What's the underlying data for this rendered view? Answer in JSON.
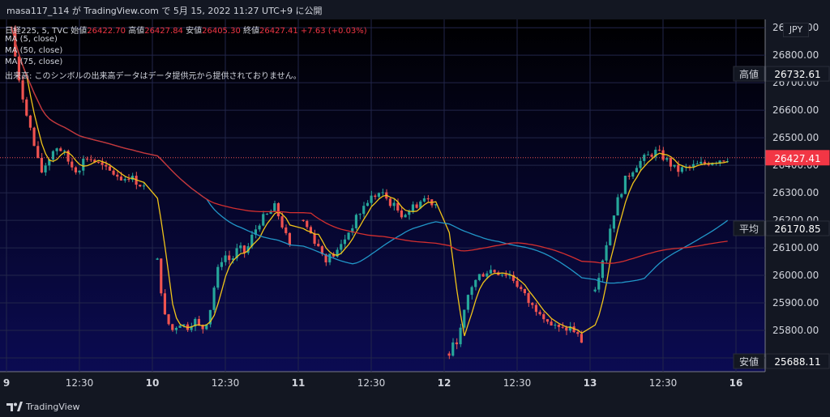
{
  "header": {
    "text": "masa117_114 が TradingView.com で 5月 15, 2022 11:27 UTC+9 に公開"
  },
  "legend": {
    "symbol": "日経225, 5, TVC",
    "open_label": "始値",
    "open": "26422.70",
    "high_label": "高値",
    "high": "26427.84",
    "low_label": "安値",
    "low": "26405.30",
    "close_label": "終値",
    "close": "26427.41",
    "change": "+7.63 (+0.03%)",
    "ma5": "MA (5, close)",
    "ma50": "MA (50, close)",
    "ma75": "MA (75, close)",
    "volume_note": "出来高: このシンボルの出来高データはデータ提供元から提供されておりません。"
  },
  "currency": "JPY",
  "footer": {
    "brand": "TradingView"
  },
  "colors": {
    "up": "#26a69a",
    "down": "#ef5350",
    "ma5": "#f0c419",
    "ma50": "#2196c8",
    "ma75": "#d32f2f",
    "bg_top": "#000000",
    "bg_bottom": "#0b0b52"
  },
  "chart_data": {
    "type": "candlestick",
    "symbol": "日経225",
    "interval": "5",
    "ylim": [
      25650,
      26930
    ],
    "y_ticks": [
      25700,
      25800,
      25900,
      26000,
      26100,
      26200,
      26300,
      26400,
      26500,
      26600,
      26700,
      26800,
      26900
    ],
    "x_ticks": [
      "9",
      "12:30",
      "10",
      "12:30",
      "11",
      "12:30",
      "12",
      "12:30",
      "13",
      "12:30",
      "16"
    ],
    "price_labels": [
      {
        "label": "高値",
        "value": "26732.61"
      },
      {
        "label": "",
        "value": "26427.41"
      },
      {
        "label": "平均",
        "value": "26170.85"
      },
      {
        "label": "安値",
        "value": "25688.11"
      }
    ],
    "days": [
      {
        "day": "9",
        "path": [
          26900,
          26700,
          26600,
          26480,
          26370,
          26420,
          26470,
          26450,
          26400,
          26380,
          26430,
          26420,
          26400,
          26380,
          26370,
          26350,
          26360,
          26340,
          26320
        ]
      },
      {
        "day": "10",
        "path": [
          26050,
          25850,
          25800,
          25830,
          25810,
          25840,
          25800,
          25850,
          26000,
          26080,
          26050,
          26100,
          26080,
          26150,
          26200,
          26220,
          26250,
          26180,
          26100
        ]
      },
      {
        "day": "11",
        "path": [
          26200,
          26130,
          26060,
          26080,
          26150,
          26220,
          26280,
          26300,
          26260,
          26220,
          26250,
          26280,
          26260
        ]
      },
      {
        "day": "12",
        "path": [
          25720,
          25780,
          25950,
          26000,
          26020,
          26010,
          26000,
          25950,
          25890,
          25870,
          25820,
          25800,
          25810,
          25760
        ]
      },
      {
        "day": "13",
        "path": [
          25950,
          26100,
          26250,
          26350,
          26400,
          26430,
          26450,
          26420,
          26380,
          26390,
          26400,
          26410,
          26420,
          26427
        ]
      }
    ],
    "series": [
      {
        "name": "MA (5, close)",
        "color": "#f0c419"
      },
      {
        "name": "MA (50, close)",
        "color": "#2196c8"
      },
      {
        "name": "MA (75, close)",
        "color": "#d32f2f"
      }
    ]
  }
}
